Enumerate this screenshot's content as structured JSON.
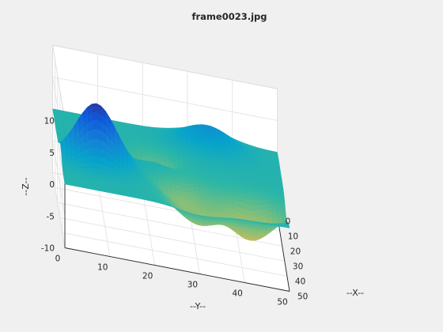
{
  "window": {
    "background": "#f0f0f0"
  },
  "chart_data": {
    "type": "surface",
    "title": "frame0023.jpg",
    "xlabel": "--X--",
    "ylabel": "--Y--",
    "zlabel": "--Z--",
    "xlim": [
      0,
      50
    ],
    "ylim": [
      0,
      50
    ],
    "zlim": [
      -10,
      10
    ],
    "xticks": [
      0,
      10,
      20,
      30,
      40,
      50
    ],
    "yticks": [
      0,
      10,
      20,
      30,
      40,
      50
    ],
    "zticks": [
      -10,
      -5,
      0,
      5,
      10
    ],
    "grid": true,
    "colormap": "parula",
    "colormap_stops": [
      "#352a87",
      "#0f5cdd",
      "#1481d6",
      "#06a4ca",
      "#2eb7a4",
      "#87bf77",
      "#d1bb59",
      "#fec832",
      "#f9fb0e"
    ],
    "surface_grid": {
      "x_points": 51,
      "y_points": 51,
      "x_range": [
        0,
        50
      ],
      "y_range": [
        0,
        50
      ]
    },
    "surface_features": [
      {
        "kind": "peak",
        "x": 32,
        "y": 8,
        "z": 9.5,
        "spread": 4.5
      },
      {
        "kind": "peak",
        "x": 7,
        "y": 34,
        "z": 3.5,
        "spread": 5.5
      },
      {
        "kind": "peak",
        "x": 24,
        "y": 22,
        "z": 1.2,
        "spread": 3.0
      },
      {
        "kind": "dip",
        "x": 37,
        "y": 42,
        "z": -6.0,
        "spread": 5.0
      },
      {
        "kind": "dip",
        "x": 32,
        "y": 27,
        "z": -3.2,
        "spread": 4.2
      },
      {
        "kind": "dip",
        "x": 42,
        "y": 30,
        "z": -3.8,
        "spread": 4.5
      },
      {
        "kind": "dip",
        "x": 18,
        "y": 22,
        "z": -2.8,
        "spread": 3.8
      }
    ]
  }
}
